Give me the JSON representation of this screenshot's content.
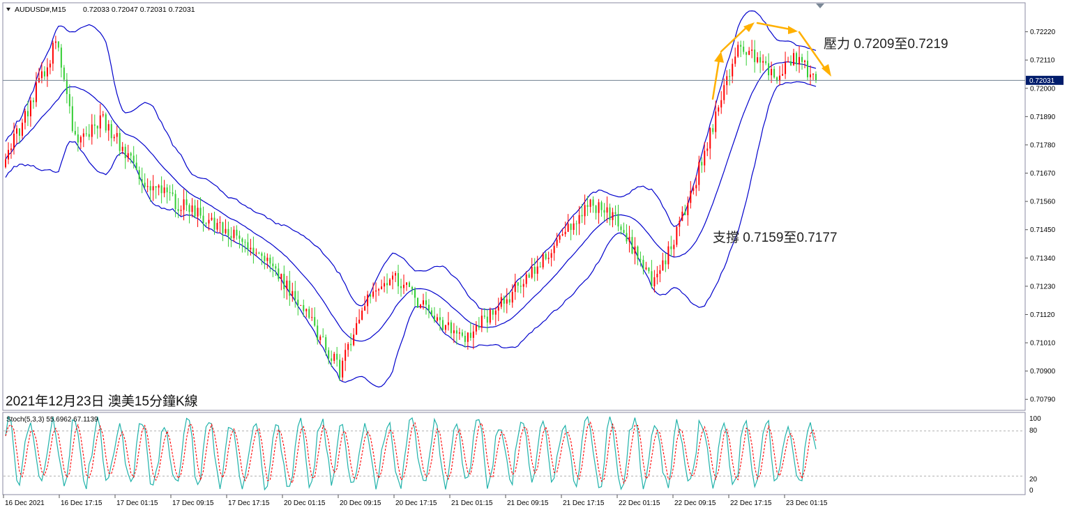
{
  "header": {
    "symbol_label": "AUDUSD#,M15",
    "ohlc": "0.72033 0.72047 0.72031 0.72031"
  },
  "annotations": {
    "resistance": "壓力 0.7209至0.7219",
    "support": "支撐 0.7159至0.7177",
    "caption": "2021年12月23日 澳美15分鐘K線"
  },
  "stoch_panel": {
    "label": "Stoch(5,3,3) 55.6962 67.1139",
    "levels": [
      "100",
      "80",
      "20",
      "0"
    ]
  },
  "colors": {
    "bull": "#ff0000",
    "bear": "#32cd32",
    "bands": "#0000cc",
    "arrows": "#ffb000",
    "stoch_main": "#20b2aa",
    "stoch_signal": "#ff0000",
    "price_tag_bg": "#001c6b"
  },
  "chart_data": [
    {
      "type": "candlestick",
      "symbol": "AUDUSD#",
      "timeframe": "M15",
      "current_price": 0.72031,
      "current_price_label": "0.72031",
      "ylim": [
        0.7075,
        0.7233
      ],
      "y_ticks": [
        "0.72220",
        "0.72110",
        "0.72000",
        "0.71890",
        "0.71780",
        "0.71670",
        "0.71560",
        "0.71450",
        "0.71340",
        "0.71230",
        "0.71120",
        "0.71010",
        "0.70900",
        "0.70790"
      ],
      "x_ticks": [
        "16 Dec 2021",
        "16 Dec 17:15",
        "17 Dec 01:15",
        "17 Dec 09:15",
        "17 Dec 17:15",
        "20 Dec 01:15",
        "20 Dec 09:15",
        "20 Dec 17:15",
        "21 Dec 01:15",
        "21 Dec 09:15",
        "21 Dec 17:15",
        "22 Dec 01:15",
        "22 Dec 09:15",
        "22 Dec 17:15",
        "23 Dec 01:15"
      ],
      "bars": 292,
      "anchors": [
        [
          0,
          0.7172
        ],
        [
          16,
          0.7212
        ],
        [
          18,
          0.7221
        ],
        [
          25,
          0.718
        ],
        [
          35,
          0.7188
        ],
        [
          50,
          0.7163
        ],
        [
          70,
          0.715
        ],
        [
          90,
          0.7137
        ],
        [
          105,
          0.7118
        ],
        [
          120,
          0.709
        ],
        [
          128,
          0.7115
        ],
        [
          140,
          0.7126
        ],
        [
          155,
          0.711
        ],
        [
          165,
          0.7103
        ],
        [
          180,
          0.7118
        ],
        [
          195,
          0.7136
        ],
        [
          210,
          0.7155
        ],
        [
          220,
          0.7148
        ],
        [
          232,
          0.7125
        ],
        [
          240,
          0.714
        ],
        [
          252,
          0.7178
        ],
        [
          262,
          0.7215
        ],
        [
          270,
          0.7212
        ],
        [
          277,
          0.7205
        ],
        [
          283,
          0.7213
        ],
        [
          291,
          0.7203
        ]
      ],
      "overlays": [
        "Bollinger Bands"
      ]
    },
    {
      "type": "line",
      "indicator": "Stochastic",
      "params": "5,3,3",
      "main_value": 55.6962,
      "signal_value": 67.1139,
      "ylim": [
        0,
        100
      ],
      "levels": [
        20,
        80
      ]
    }
  ]
}
